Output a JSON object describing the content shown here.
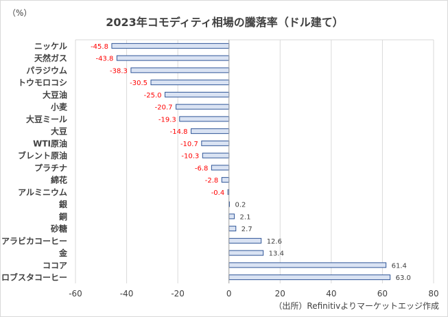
{
  "chart_data": {
    "type": "bar",
    "orientation": "horizontal",
    "title": "2023年コモディティ相場の騰落率（ドル建て）",
    "unit_label": "（%）",
    "source_note": "（出所）Refinitivよりマーケットエッジ作成",
    "categories": [
      "ニッケル",
      "天然ガス",
      "パラジウム",
      "トウモロコシ",
      "大豆油",
      "小麦",
      "大豆ミール",
      "大豆",
      "WTI原油",
      "ブレント原油",
      "プラチナ",
      "綿花",
      "アルミニウム",
      "銀",
      "銅",
      "砂糖",
      "アラビカコーヒー",
      "金",
      "ココア",
      "ロブスタコーヒー"
    ],
    "values": [
      -45.8,
      -43.8,
      -38.3,
      -30.5,
      -25.0,
      -20.7,
      -19.3,
      -14.8,
      -10.7,
      -10.3,
      -6.8,
      -2.8,
      -0.4,
      0.2,
      2.1,
      2.7,
      12.6,
      13.4,
      61.4,
      63.0
    ],
    "value_labels": [
      "-45.8",
      "-43.8",
      "-38.3",
      "-30.5",
      "-25.0",
      "-20.7",
      "-19.3",
      "-14.8",
      "-10.7",
      "-10.3",
      "-6.8",
      "-2.8",
      "-0.4",
      "0.2",
      "2.1",
      "2.7",
      "12.6",
      "13.4",
      "61.4",
      "63.0"
    ],
    "xlim": [
      -60,
      80
    ],
    "xticks": [
      "-60",
      "-40",
      "-20",
      "0",
      "20",
      "40",
      "60",
      "80"
    ],
    "grid": "vertical",
    "legend": "none",
    "colors": {
      "bar_fill": "#dae3f3",
      "bar_stroke": "#2f5597",
      "negative_label": "#ff0000",
      "positive_label": "#404040",
      "grid": "#d9d9d9",
      "text": "#404040"
    }
  }
}
